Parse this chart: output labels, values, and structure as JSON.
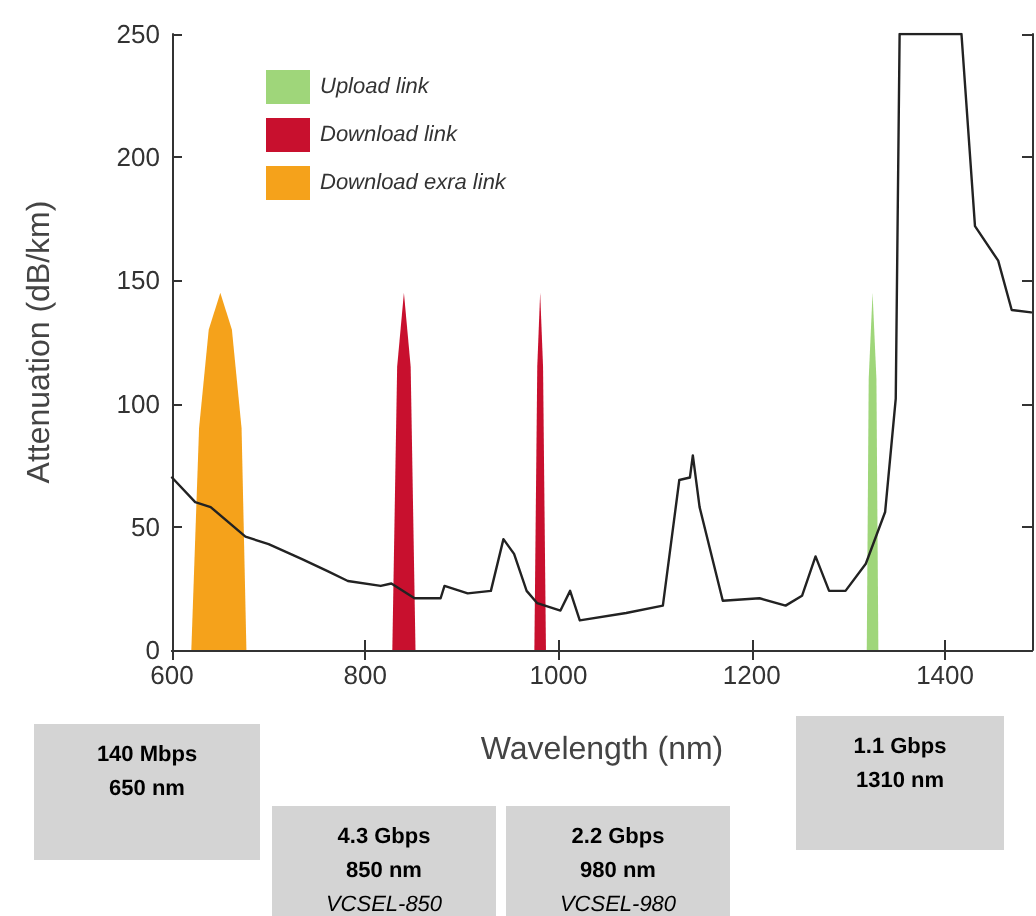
{
  "chart_data": {
    "type": "line",
    "xlabel": "Wavelength (nm)",
    "ylabel": "Attenuation (dB/km)",
    "xlim": [
      600,
      1490
    ],
    "xticks": [
      600,
      800,
      1000,
      1200,
      1400
    ],
    "ylim": [
      0,
      250
    ],
    "yticks": [
      0,
      50,
      100,
      150,
      200,
      250
    ],
    "grid": false,
    "legend": "top left",
    "marker": "none",
    "line_style": "solid",
    "series": [
      {
        "color": "#222222",
        "x": [
          600,
          624,
          640,
          676,
          700,
          734,
          761,
          782,
          816,
          827,
          851,
          878,
          882,
          906,
          930,
          943,
          954,
          967,
          978,
          1002,
          1012,
          1022,
          1070,
          1108,
          1125,
          1136,
          1139,
          1146,
          1170,
          1208,
          1235,
          1252,
          1266,
          1280,
          1297,
          1318,
          1338,
          1349,
          1353,
          1417,
          1431,
          1455,
          1469,
          1489
        ],
        "values": [
          70,
          60,
          58,
          46,
          43,
          37,
          32,
          28,
          26,
          27,
          21,
          21,
          26,
          23,
          24,
          45,
          39,
          24,
          19,
          16,
          24,
          12,
          15,
          18,
          69,
          70,
          79,
          58,
          20,
          21,
          18,
          22,
          38,
          24,
          24,
          35,
          56,
          102,
          250,
          250,
          172,
          158,
          138,
          137
        ]
      },
      {
        "type": "area",
        "name": "Upload link",
        "color": "#9fd67a",
        "x": [
          1319,
          1321,
          1325,
          1329,
          1331
        ],
        "values": [
          0,
          110,
          145,
          110,
          0
        ]
      },
      {
        "type": "area",
        "name": "Download link",
        "color": "#c8102e",
        "x": [
          828,
          833,
          840,
          847,
          852
        ],
        "values": [
          0,
          115,
          145,
          115,
          0
        ]
      },
      {
        "type": "area",
        "color": "#c8102e",
        "x": [
          975,
          978,
          981,
          984,
          987
        ],
        "values": [
          0,
          115,
          145,
          115,
          0
        ]
      },
      {
        "type": "area",
        "name": "Download exra link",
        "color": "#f5a21b",
        "x": [
          620,
          628,
          638,
          650,
          662,
          672,
          677
        ],
        "values": [
          0,
          90,
          130,
          145,
          130,
          90,
          0
        ]
      }
    ],
    "annotations": [
      "140 Mbps\n650 nm",
      "4.3 Gbps\n850 nm\nVCSEL-850",
      "2.2 Gbps\n980 nm\nVCSEL-980",
      "1.1 Gbps\n1310 nm"
    ]
  }
}
